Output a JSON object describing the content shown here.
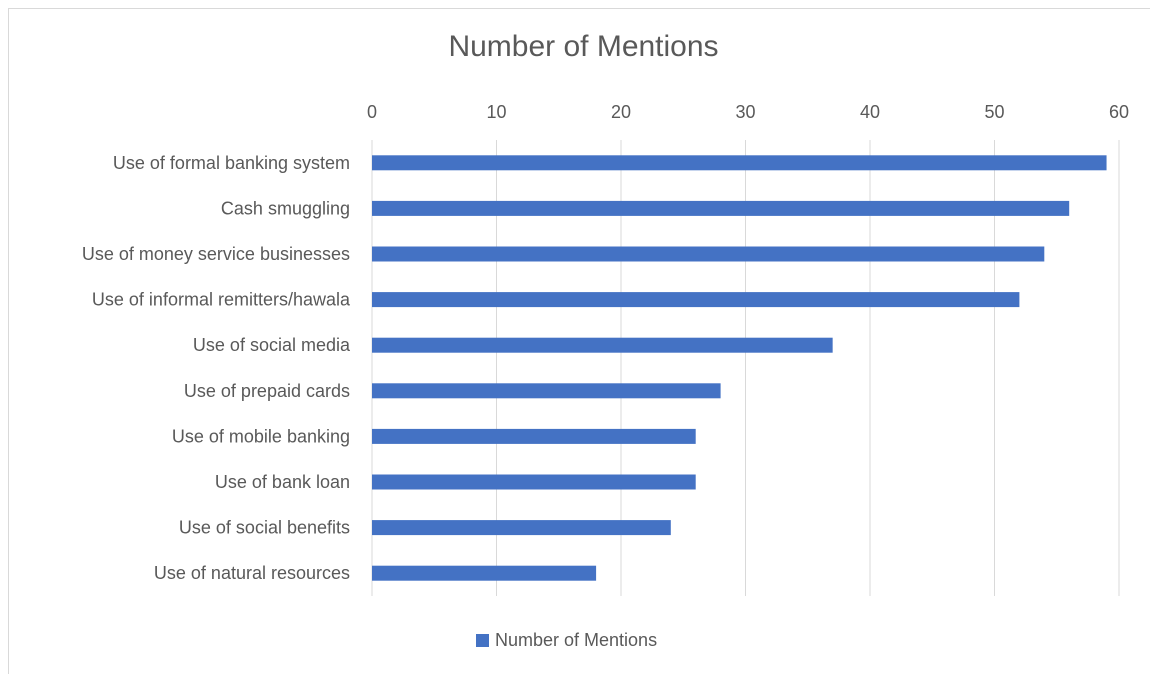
{
  "chart_data": {
    "type": "bar",
    "orientation": "horizontal",
    "title": "Number of Mentions",
    "xlabel": "",
    "ylabel": "",
    "categories": [
      "Use of formal banking system",
      "Cash smuggling",
      "Use of money service businesses",
      "Use of informal remitters/hawala",
      "Use of social media",
      "Use of prepaid cards",
      "Use of mobile banking",
      "Use of bank loan",
      "Use of social benefits",
      "Use of natural resources"
    ],
    "series": [
      {
        "name": "Number of Mentions",
        "values": [
          59,
          56,
          54,
          52,
          37,
          28,
          26,
          26,
          24,
          18
        ]
      }
    ],
    "xlim": [
      0,
      60
    ],
    "xticks": [
      "0",
      "10",
      "20",
      "30",
      "40",
      "50",
      "60"
    ],
    "x_axis_position": "top",
    "grid": true,
    "legend": "bottom",
    "colors": {
      "bar": "#4472c4",
      "grid": "#d9d9d9",
      "text": "#595959"
    }
  }
}
